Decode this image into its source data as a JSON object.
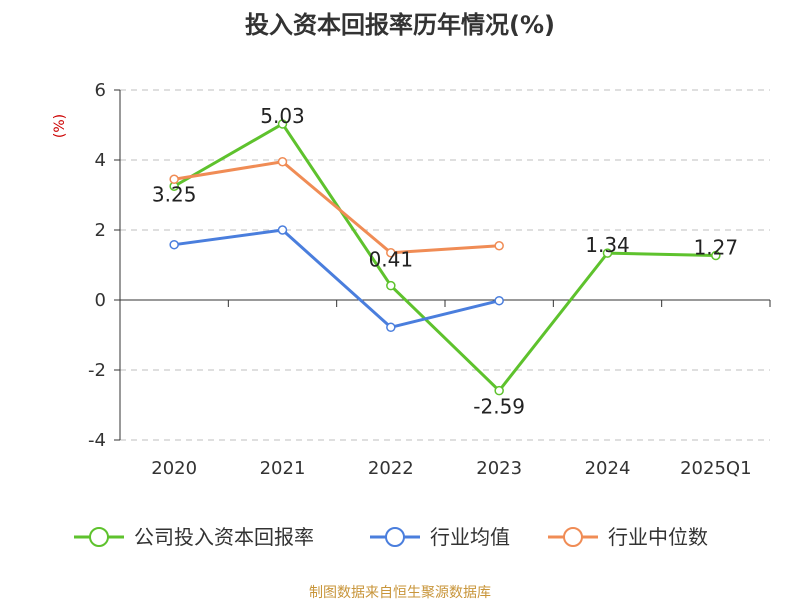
{
  "chart_data": {
    "type": "line",
    "title": "投入资本回报率历年情况(%)",
    "unit_label": "(%)",
    "categories": [
      "2020",
      "2021",
      "2022",
      "2023",
      "2024",
      "2025Q1"
    ],
    "ylim": [
      -4,
      6
    ],
    "yticks": [
      -4,
      -2,
      0,
      2,
      4,
      6
    ],
    "grid": true,
    "legend_position": "bottom",
    "series": [
      {
        "name": "公司投入资本回报率",
        "color": "#5ec22d",
        "values": [
          3.25,
          5.03,
          0.41,
          -2.59,
          1.34,
          1.27
        ],
        "labels": [
          "3.25",
          "5.03",
          "0.41",
          "-2.59",
          "1.34",
          "1.27"
        ]
      },
      {
        "name": "行业均值",
        "color": "#4a7edd",
        "values": [
          1.58,
          2.0,
          -0.78,
          -0.02,
          null,
          null
        ]
      },
      {
        "name": "行业中位数",
        "color": "#f08c55",
        "values": [
          3.45,
          3.95,
          1.35,
          1.55,
          null,
          null
        ]
      }
    ],
    "source": "制图数据来自恒生聚源数据库"
  },
  "colors": {
    "unit_label": "#cc0000",
    "source": "#c8953a",
    "grid": "#cccccc",
    "axis": "#333333"
  }
}
